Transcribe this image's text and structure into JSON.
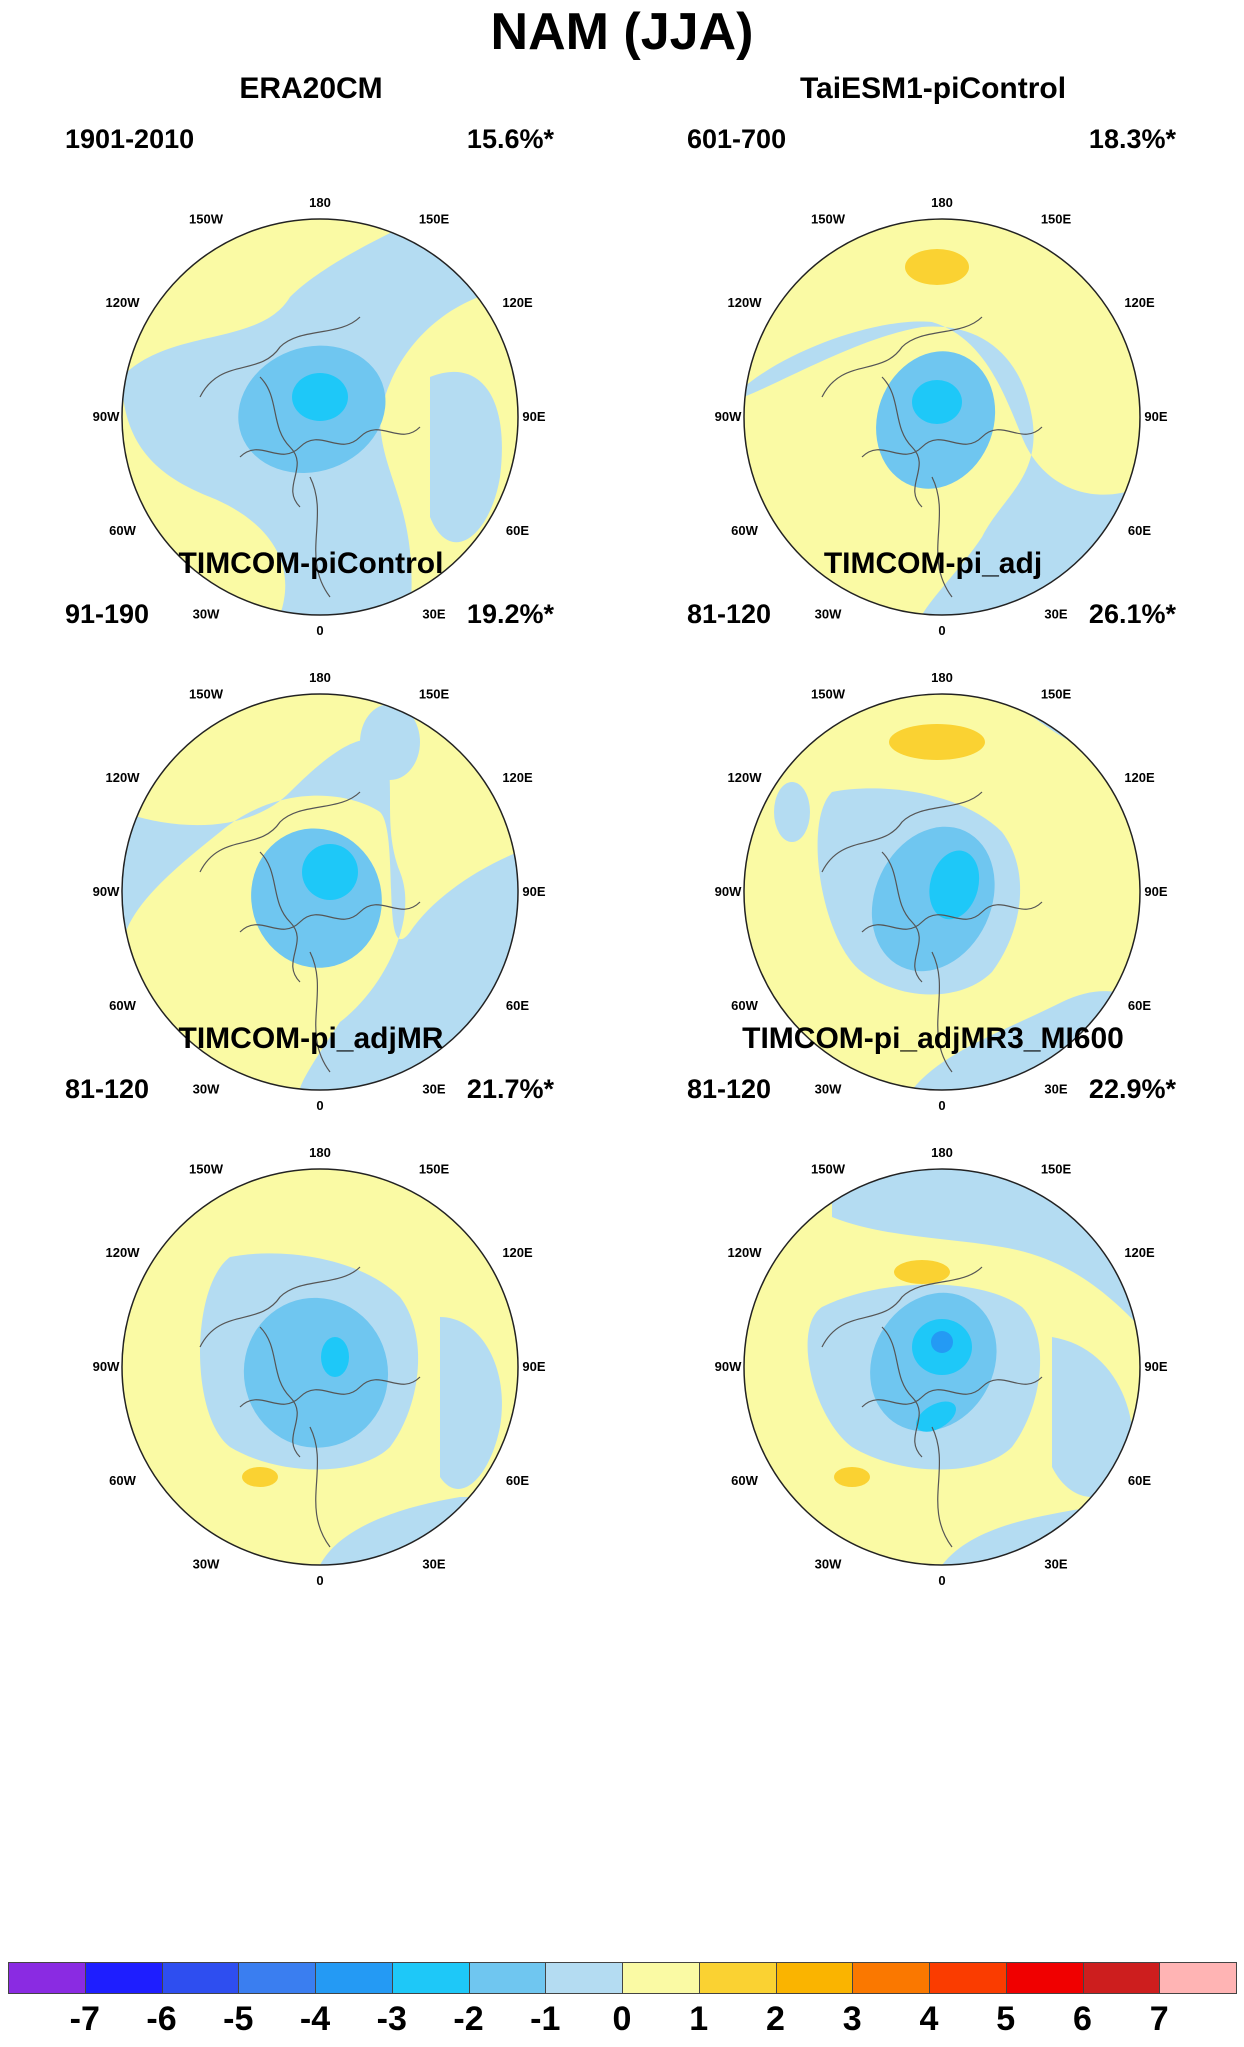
{
  "title": "NAM (JJA)",
  "colors": {
    "ocean_bg": "#fafaa4",
    "neg1": "#b4dcf2",
    "neg2": "#6fc6f0",
    "neg3": "#1ec8f8",
    "neg4": "#249af4",
    "pos1": "#fad232",
    "coast": "#555555"
  },
  "longitude_labels": [
    "180",
    "150E",
    "120E",
    "90E",
    "60E",
    "30E",
    "0",
    "30W",
    "60W",
    "90W",
    "120W",
    "150W"
  ],
  "panels": [
    {
      "name": "ERA20CM",
      "period": "1901-2010",
      "variance": "15.6%*"
    },
    {
      "name": "TaiESM1-piControl",
      "period": "601-700",
      "variance": "18.3%*"
    },
    {
      "name": "TIMCOM-piControl",
      "period": "91-190",
      "variance": "19.2%*"
    },
    {
      "name": "TIMCOM-pi_adj",
      "period": "81-120",
      "variance": "26.1%*"
    },
    {
      "name": "TIMCOM-pi_adjMR",
      "period": "81-120",
      "variance": "21.7%*"
    },
    {
      "name": "TIMCOM-pi_adjMR3_MI600",
      "period": "81-120",
      "variance": "22.9%*"
    }
  ],
  "colorbar": {
    "colors": [
      "#8a2be2",
      "#1e1eff",
      "#2e4ef0",
      "#3a7ef0",
      "#249af4",
      "#1ec8f8",
      "#6fc6f0",
      "#b4dcf2",
      "#fafaa4",
      "#fad232",
      "#fab400",
      "#fa7800",
      "#fa3c00",
      "#f00000",
      "#cd1e1e",
      "#ffb4b4"
    ],
    "labels": [
      "-7",
      "-6",
      "-5",
      "-4",
      "-3",
      "-2",
      "-1",
      "0",
      "1",
      "2",
      "3",
      "4",
      "5",
      "6",
      "7"
    ]
  }
}
